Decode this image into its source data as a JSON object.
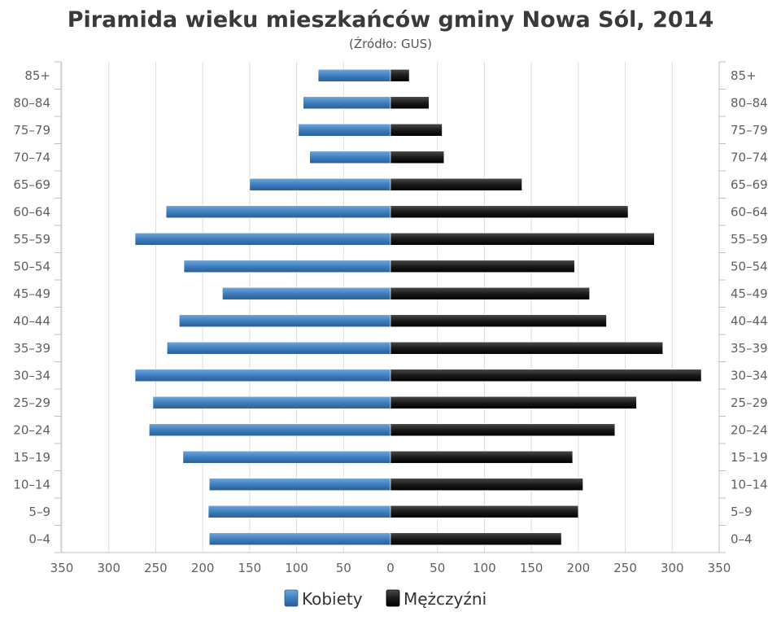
{
  "chart_data": {
    "type": "bar",
    "orientation": "horizontal",
    "layout": "population-pyramid",
    "title": "Piramida wieku mieszkańców gminy Nowa Sól, 2014",
    "subtitle": "(Źródło: GUS)",
    "categories": [
      "85+",
      "80-84",
      "75-79",
      "70-74",
      "65-69",
      "60-64",
      "55-59",
      "50-54",
      "45-49",
      "40-44",
      "35-39",
      "30-34",
      "25-29",
      "20-24",
      "15-19",
      "10-14",
      "5-9",
      "0-4"
    ],
    "series": [
      {
        "name": "Kobiety",
        "color": "#3f7fbf",
        "values": [
          77,
          93,
          98,
          86,
          150,
          239,
          272,
          220,
          179,
          225,
          238,
          272,
          253,
          257,
          221,
          193,
          194,
          193
        ]
      },
      {
        "name": "Mężczyźni",
        "color": "#1a1a1a",
        "values": [
          20,
          41,
          55,
          57,
          140,
          253,
          281,
          196,
          212,
          230,
          290,
          331,
          262,
          239,
          194,
          205,
          200,
          182
        ]
      }
    ],
    "x_ticks": [
      "350",
      "300",
      "250",
      "200",
      "150",
      "100",
      "50",
      "0",
      "50",
      "100",
      "150",
      "200",
      "250",
      "300",
      "350"
    ],
    "xlim": [
      -350,
      350
    ],
    "grid": "vertical",
    "legend": "bottom-center"
  }
}
